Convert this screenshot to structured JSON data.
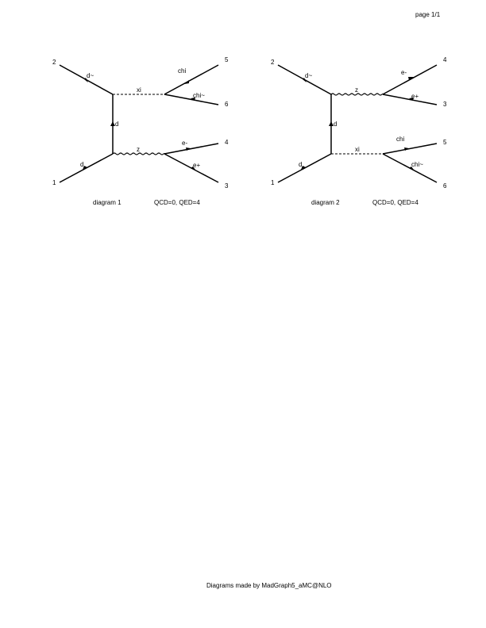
{
  "page_label": "page 1/1",
  "footer": "Diagrams made by MadGraph5_aMC@NLO",
  "diagrams": [
    {
      "caption": "diagram 1",
      "couplings": "QCD=0, QED=4",
      "ext_labels": [
        "1",
        "2",
        "3",
        "4",
        "5",
        "6"
      ],
      "particles": {
        "in_bottom": "d",
        "in_top": "d~",
        "t_channel": "d",
        "top_propagator": "xi",
        "bottom_propagator": "z",
        "top_out_upper": "chi",
        "top_out_lower": "chi~",
        "bottom_out_upper": "e-",
        "bottom_out_lower": "e+"
      }
    },
    {
      "caption": "diagram 2",
      "couplings": "QCD=0, QED=4",
      "ext_labels": [
        "1",
        "2",
        "4",
        "3",
        "5",
        "6"
      ],
      "particles": {
        "in_bottom": "d",
        "in_top": "d~",
        "t_channel": "d",
        "top_propagator": "z",
        "bottom_propagator": "xi",
        "top_out_upper": "e-",
        "top_out_lower": "e+",
        "bottom_out_upper": "chi",
        "bottom_out_lower": "chi~"
      }
    }
  ]
}
